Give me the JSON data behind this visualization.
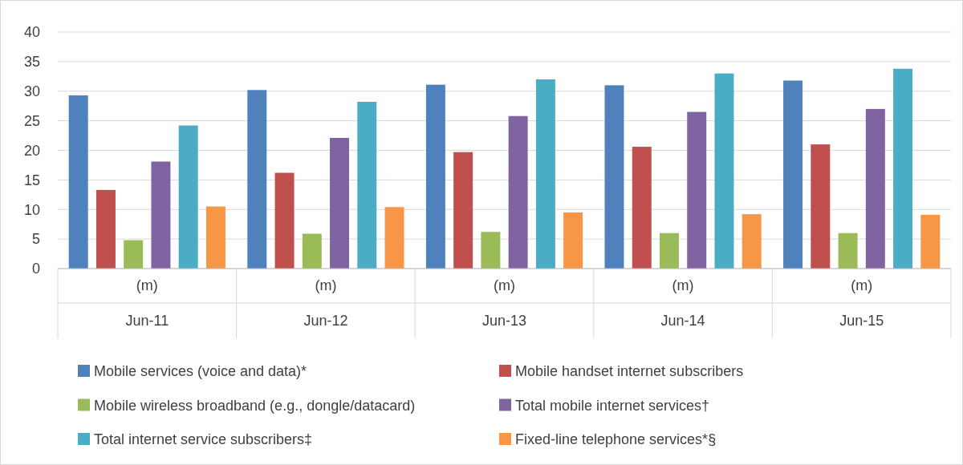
{
  "chart_data": {
    "type": "bar",
    "categories": [
      "(m)\nJun-11",
      "(m)\nJun-12",
      "(m)\nJun-13",
      "(m)\nJun-14",
      "(m)\nJun-15"
    ],
    "series": [
      {
        "name": "Mobile services (voice and data)*",
        "color": "#4f81bd",
        "values": [
          29.3,
          30.2,
          31.1,
          31.0,
          31.8
        ]
      },
      {
        "name": "Mobile handset internet subscribers",
        "color": "#c0504d",
        "values": [
          13.3,
          16.2,
          19.7,
          20.6,
          21.0
        ]
      },
      {
        "name": "Mobile wireless broadband (e.g., dongle/datacard)",
        "color": "#9bbb59",
        "values": [
          4.8,
          5.9,
          6.2,
          6.0,
          6.0
        ]
      },
      {
        "name": "Total mobile internet services†",
        "color": "#8064a2",
        "values": [
          18.1,
          22.1,
          25.8,
          26.5,
          27.0
        ]
      },
      {
        "name": "Total internet service subscribers‡",
        "color": "#4bacc6",
        "values": [
          24.2,
          28.2,
          32.0,
          33.0,
          33.8
        ]
      },
      {
        "name": "Fixed-line telephone services*§",
        "color": "#f79646",
        "values": [
          10.5,
          10.4,
          9.5,
          9.2,
          9.1
        ]
      }
    ],
    "ylim": [
      0,
      40
    ],
    "yticks": [
      0,
      5,
      10,
      15,
      20,
      25,
      30,
      35,
      40
    ],
    "grid": "y",
    "legend": "bottom"
  }
}
